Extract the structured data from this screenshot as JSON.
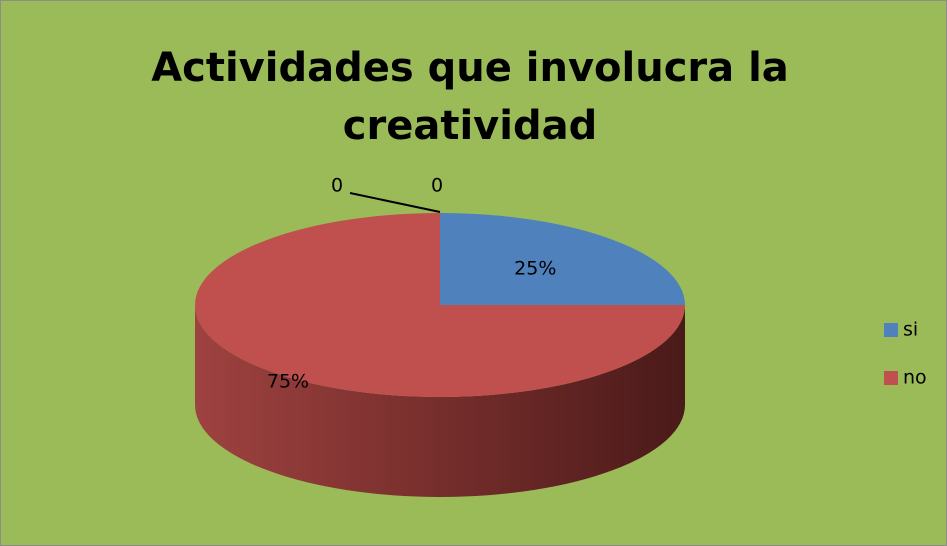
{
  "chart_data": {
    "type": "pie",
    "title": "Actividades que involucra la creatividad",
    "categories": [
      "si",
      "no",
      null,
      null
    ],
    "values": [
      25,
      75,
      0,
      0
    ],
    "value_labels": [
      "25%",
      "75%",
      "0",
      "0"
    ],
    "colors": [
      "#4f81bd",
      "#c0504d",
      "#9bbb59",
      "#8064a2"
    ],
    "legend": "right"
  }
}
